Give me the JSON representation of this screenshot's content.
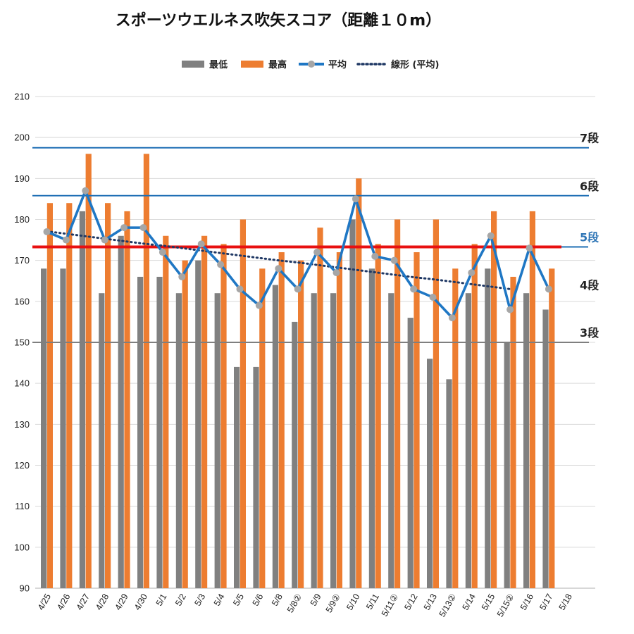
{
  "chart_data": {
    "type": "bar",
    "title": "スポーツウエルネス吹矢スコア（距離１０m）",
    "categories": [
      "4/25",
      "4/26",
      "4/27",
      "4/28",
      "4/29",
      "4/30",
      "5/1",
      "5/2",
      "5/3",
      "5/4",
      "5/5",
      "5/6",
      "5/8",
      "5/8②",
      "5/9",
      "5/9②",
      "5/10",
      "5/11",
      "5/11②",
      "5/12",
      "5/13",
      "5/13②",
      "5/14",
      "5/15",
      "5/15②",
      "5/16",
      "5/17",
      "5/18"
    ],
    "series": [
      {
        "name": "最低",
        "kind": "bar",
        "color": "#808080",
        "values": [
          168,
          168,
          182,
          162,
          176,
          166,
          166,
          162,
          170,
          162,
          144,
          144,
          164,
          155,
          162,
          162,
          180,
          168,
          162,
          156,
          146,
          141,
          162,
          168,
          150,
          162,
          158,
          null
        ]
      },
      {
        "name": "最高",
        "kind": "bar",
        "color": "#ed7d31",
        "values": [
          184,
          184,
          196,
          184,
          182,
          196,
          176,
          170,
          176,
          174,
          180,
          168,
          172,
          170,
          178,
          172,
          190,
          174,
          180,
          172,
          180,
          168,
          174,
          182,
          166,
          182,
          168,
          null
        ]
      },
      {
        "name": "平均",
        "kind": "line",
        "color": "#1f77c4",
        "marker_color": "#a6a6a6",
        "values": [
          177,
          175,
          187,
          175,
          178,
          178,
          172,
          166,
          174,
          169,
          163,
          159,
          168,
          163,
          172,
          167,
          185,
          171,
          170,
          163,
          161,
          156,
          167,
          176,
          158,
          173,
          163,
          null
        ]
      },
      {
        "name": "線形 (平均)",
        "kind": "trendline",
        "color": "#1f3864",
        "values": [
          177.1,
          176.5,
          175.9,
          175.3,
          174.7,
          174.1,
          173.6,
          173.0,
          172.4,
          171.8,
          171.2,
          170.6,
          170.0,
          169.5,
          168.9,
          168.3,
          167.7,
          167.1,
          166.5,
          165.9,
          165.4,
          164.8,
          164.2,
          163.6,
          163.0,
          null,
          null,
          null
        ]
      }
    ],
    "ylim": [
      90,
      210
    ],
    "yticks": [
      90,
      100,
      110,
      120,
      130,
      140,
      150,
      160,
      170,
      180,
      190,
      200,
      210
    ],
    "grid": true,
    "legend_position": "top",
    "reference_lines": [
      {
        "label": "7段",
        "value": 197.5,
        "color": "#1f6fb5",
        "label_color": "#222222",
        "weight": "thin"
      },
      {
        "label": "6段",
        "value": 185.8,
        "color": "#1f6fb5",
        "label_color": "#222222",
        "weight": "thin"
      },
      {
        "label": "5段",
        "value": 173.3,
        "color": "#e81010",
        "label_color": "#2e75b6",
        "weight": "thick",
        "short_line_color": "#1f6fb5"
      },
      {
        "label": "4段",
        "value": null,
        "color": null,
        "label_color": "#222222",
        "weight": "none",
        "label_at": 164
      },
      {
        "label": "3段",
        "value": 150,
        "color": "#7f7f7f",
        "label_color": "#222222",
        "weight": "thin"
      }
    ]
  }
}
